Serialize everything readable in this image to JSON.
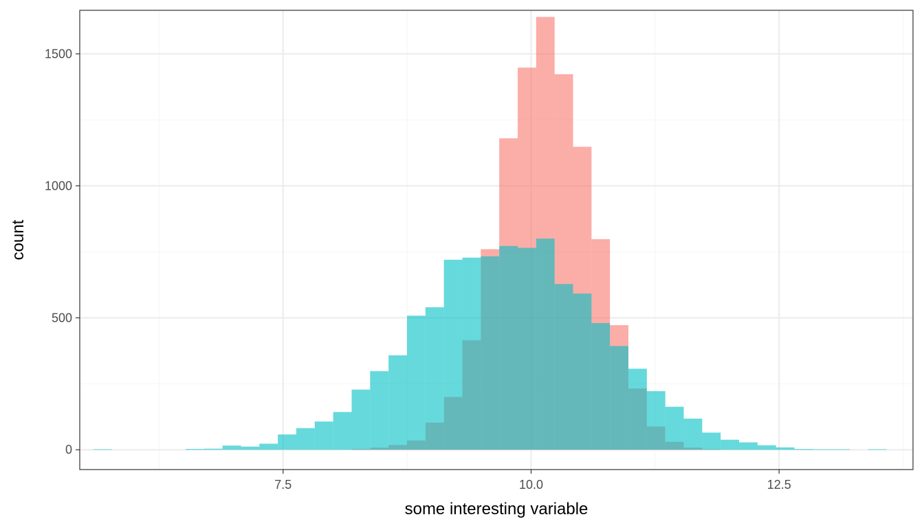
{
  "chart_data": {
    "type": "bar",
    "title": "",
    "xlabel": "some interesting variable",
    "ylabel": "count",
    "xlim": [
      5.45,
      13.85
    ],
    "ylim": [
      -75,
      1665
    ],
    "bin_width": 0.186,
    "x_ticks": [
      7.5,
      10.0,
      12.5
    ],
    "x_tick_labels": [
      "7.5",
      "10.0",
      "12.5"
    ],
    "y_ticks": [
      0,
      500,
      1000,
      1500
    ],
    "y_tick_labels": [
      "0",
      "500",
      "1000",
      "1500"
    ],
    "grid": true,
    "legend": "none",
    "colors": {
      "series_a": "#F8766D",
      "series_b": "#00BFC4",
      "panel_border": "#333333",
      "grid_major": "#EBEBEB",
      "grid_minor": "#F5F5F5"
    },
    "opacity": 0.6,
    "x": [
      5.68,
      5.866,
      6.052,
      6.238,
      6.424,
      6.61,
      6.796,
      6.982,
      7.168,
      7.354,
      7.54,
      7.726,
      7.912,
      8.098,
      8.284,
      8.47,
      8.656,
      8.842,
      9.028,
      9.214,
      9.4,
      9.586,
      9.772,
      9.958,
      10.144,
      10.33,
      10.516,
      10.702,
      10.888,
      11.074,
      11.26,
      11.446,
      11.632,
      11.818,
      12.004,
      12.19,
      12.376,
      12.562,
      12.748,
      12.934,
      13.12,
      13.306,
      13.492,
      13.678
    ],
    "series": [
      {
        "values": [
          0,
          0,
          0,
          0,
          0,
          0,
          0,
          0,
          0,
          0,
          0,
          0,
          0,
          0,
          3,
          8,
          18,
          35,
          103,
          200,
          415,
          760,
          1180,
          1448,
          1640,
          1423,
          1148,
          798,
          472,
          232,
          88,
          30,
          8,
          2,
          0,
          0,
          0,
          0,
          0,
          0,
          0,
          0,
          0,
          0
        ]
      },
      {
        "values": [
          2,
          0,
          0,
          0,
          0,
          3,
          4,
          16,
          12,
          23,
          58,
          82,
          107,
          143,
          228,
          298,
          358,
          508,
          540,
          720,
          728,
          733,
          772,
          765,
          800,
          628,
          592,
          480,
          393,
          307,
          222,
          163,
          118,
          65,
          38,
          28,
          17,
          9,
          3,
          2,
          2,
          0,
          2,
          0
        ]
      }
    ]
  }
}
